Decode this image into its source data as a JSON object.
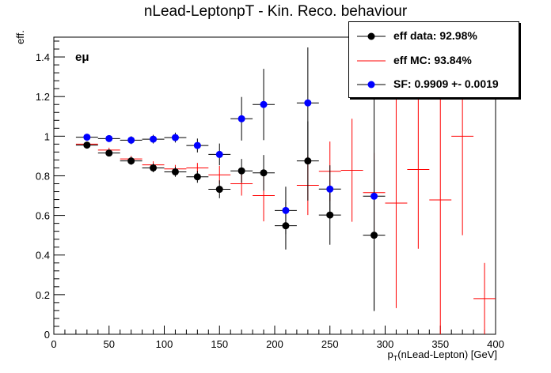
{
  "chart_data": {
    "type": "scatter",
    "title": "nLead-LeptonpT - Kin. Reco. behaviour",
    "xlabel_main": "p",
    "xlabel_sub": "T",
    "xlabel_rest": "(nLead-Lepton) [GeV]",
    "ylabel": "eff.",
    "annotation": "eμ",
    "xlim": [
      0,
      400
    ],
    "ylim": [
      0,
      1.5
    ],
    "xticks": [
      "0",
      "50",
      "100",
      "150",
      "200",
      "250",
      "300",
      "350",
      "400"
    ],
    "yticks": [
      "0",
      "0.2",
      "0.4",
      "0.6",
      "0.8",
      "1",
      "1.2",
      "1.4"
    ],
    "legend": [
      {
        "label": "eff data: 92.98%",
        "color": "#000000",
        "style": "marker"
      },
      {
        "label": "eff MC: 93.84%",
        "color": "#ff0000",
        "style": "line"
      },
      {
        "label": "SF: 0.9909 +- 0.0019",
        "color": "#0000ff",
        "style": "marker"
      }
    ],
    "bin_width": 20,
    "series": [
      {
        "name": "eff data",
        "color": "#000000",
        "kind": "marker",
        "x": [
          30,
          50,
          70,
          90,
          110,
          130,
          150,
          170,
          190,
          210,
          230,
          250,
          290
        ],
        "y": [
          0.955,
          0.915,
          0.875,
          0.84,
          0.82,
          0.795,
          0.732,
          0.825,
          0.815,
          0.548,
          0.875,
          0.602,
          0.5
        ],
        "yerr": [
          0.012,
          0.015,
          0.02,
          0.022,
          0.025,
          0.03,
          0.045,
          0.06,
          0.09,
          0.12,
          0.2,
          0.15,
          0.38
        ]
      },
      {
        "name": "eff MC",
        "color": "#ff0000",
        "kind": "cross",
        "x": [
          30,
          50,
          70,
          90,
          110,
          130,
          150,
          170,
          190,
          230,
          250,
          270,
          290,
          310,
          330,
          350,
          370,
          390
        ],
        "y": [
          0.96,
          0.93,
          0.885,
          0.855,
          0.835,
          0.84,
          0.805,
          0.76,
          0.7,
          0.752,
          0.823,
          0.828,
          0.715,
          0.662,
          0.832,
          0.678,
          1.0,
          0.18
        ],
        "yerr": [
          0.01,
          0.012,
          0.015,
          0.018,
          0.02,
          0.025,
          0.045,
          0.06,
          0.13,
          0.15,
          0.15,
          0.26,
          0.2,
          0.53,
          0.4,
          0.68,
          0.5,
          0.18
        ]
      },
      {
        "name": "SF",
        "color": "#0000ff",
        "kind": "marker",
        "x": [
          30,
          50,
          70,
          90,
          110,
          130,
          150,
          170,
          190,
          210,
          230,
          250,
          290
        ],
        "y": [
          0.995,
          0.988,
          0.98,
          0.985,
          0.993,
          0.953,
          0.908,
          1.088,
          1.16,
          0.625,
          1.168,
          0.733,
          0.697
        ],
        "yerr": [
          0.012,
          0.015,
          0.02,
          0.022,
          0.025,
          0.035,
          0.055,
          0.11,
          0.18,
          0.12,
          0.28,
          0.12,
          0.58
        ]
      }
    ]
  }
}
